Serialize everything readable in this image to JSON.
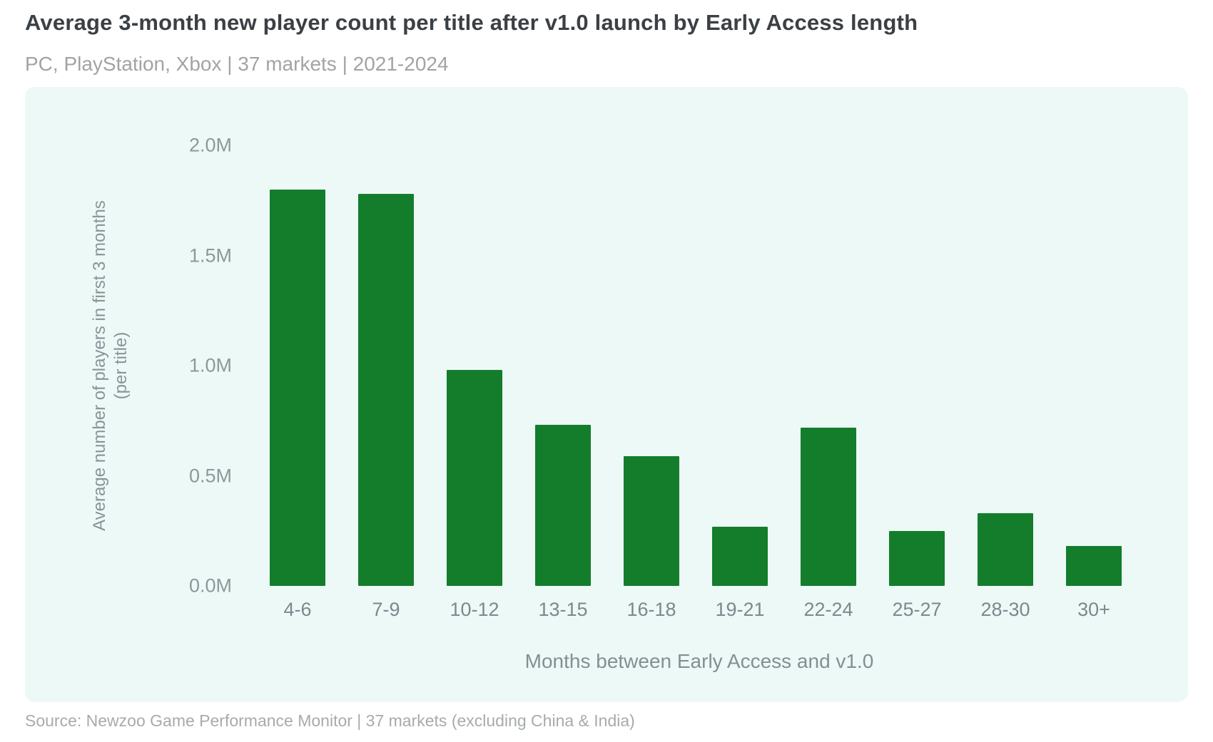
{
  "header": {
    "title": "Average 3-month new player count per title after v1.0 launch by Early Access length",
    "subtitle": "PC, PlayStation, Xbox | 37 markets | 2021-2024"
  },
  "footer": {
    "source_line": "Source: Newzoo Game Performance Monitor | 37 markets (excluding China & India)"
  },
  "colors": {
    "bar_green": "#137d2b",
    "panel_background": "#ecf9f6",
    "title_text": "#3b4045",
    "muted_text": "#a1a3a5",
    "axis_text": "#8b9298"
  },
  "chart_data": {
    "type": "bar",
    "title": "Average 3-month new player count per title after v1.0 launch by Early Access length",
    "subtitle": "PC, PlayStation, Xbox | 37 markets | 2021-2024",
    "categories": [
      "4-6",
      "7-9",
      "10-12",
      "13-15",
      "16-18",
      "19-21",
      "22-24",
      "25-27",
      "28-30",
      "30+"
    ],
    "values": [
      1.8,
      1.78,
      0.98,
      0.73,
      0.59,
      0.27,
      0.72,
      0.25,
      0.33,
      0.18
    ],
    "values_unit": "M",
    "xlabel": "Months between Early Access and v1.0",
    "ylabel": "Average number of players in first 3 months (per title)",
    "ylabel_lines": [
      "Average number of players in first 3 months",
      "(per title)"
    ],
    "ylim": [
      0,
      2.0
    ],
    "yticks": [
      "0.0M",
      "0.5M",
      "1.0M",
      "1.5M",
      "2.0M"
    ],
    "grid": false,
    "legend": null
  }
}
